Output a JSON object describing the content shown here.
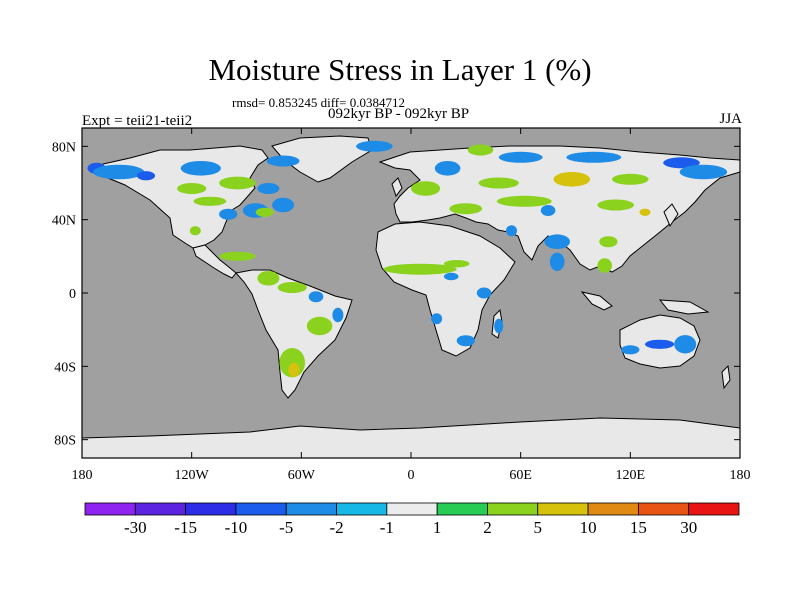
{
  "title": "Moisture Stress in Layer 1 (%)",
  "stats_text": "rmsd= 0.853245 diff= 0.0384712",
  "period_text": "092kyr BP - 092kyr BP",
  "left_label": "Expt = teii21-teii2",
  "right_label": "JJA",
  "chart_data": {
    "type": "heatmap",
    "projection": "cylindrical-equidistant",
    "xlim": [
      -180,
      180
    ],
    "ylim": [
      -90,
      90
    ],
    "x_ticks": [
      {
        "value": -180,
        "label": "180"
      },
      {
        "value": -120,
        "label": "120W"
      },
      {
        "value": -60,
        "label": "60W"
      },
      {
        "value": 0,
        "label": "0"
      },
      {
        "value": 60,
        "label": "60E"
      },
      {
        "value": 120,
        "label": "120E"
      },
      {
        "value": 180,
        "label": "180"
      }
    ],
    "y_ticks": [
      {
        "value": 80,
        "label": "80N"
      },
      {
        "value": 40,
        "label": "40N"
      },
      {
        "value": 0,
        "label": "0"
      },
      {
        "value": -40,
        "label": "40S"
      },
      {
        "value": -80,
        "label": "80S"
      }
    ],
    "ocean_color": "#a0a0a0",
    "land_color": "#e8e8e8",
    "colorbar": {
      "labels": [
        "-30",
        "-15",
        "-10",
        "-5",
        "-2",
        "-1",
        "1",
        "2",
        "5",
        "10",
        "15",
        "30"
      ],
      "colors": [
        "#8f24f0",
        "#5c24e0",
        "#2d2ce6",
        "#1c5cec",
        "#1e8ce6",
        "#18b8e6",
        "#ececec",
        "#26cc54",
        "#8ad21e",
        "#d6c20c",
        "#e08a14",
        "#e85414",
        "#e81414"
      ]
    },
    "anomalies": [
      {
        "label": "-5",
        "lon": -172,
        "lat": 68,
        "w": 10,
        "h": 6
      },
      {
        "label": "-2",
        "lon": -160,
        "lat": 66,
        "w": 28,
        "h": 8
      },
      {
        "label": "-5",
        "lon": -145,
        "lat": 64,
        "w": 10,
        "h": 5
      },
      {
        "label": "-2",
        "lon": -115,
        "lat": 68,
        "w": 22,
        "h": 8
      },
      {
        "label": "-2",
        "lon": -70,
        "lat": 72,
        "w": 18,
        "h": 6
      },
      {
        "label": "2",
        "lon": -120,
        "lat": 57,
        "w": 16,
        "h": 6
      },
      {
        "label": "2",
        "lon": -95,
        "lat": 60,
        "w": 20,
        "h": 7
      },
      {
        "label": "-2",
        "lon": -78,
        "lat": 57,
        "w": 12,
        "h": 6
      },
      {
        "label": "2",
        "lon": -110,
        "lat": 50,
        "w": 18,
        "h": 5
      },
      {
        "label": "-2",
        "lon": -100,
        "lat": 43,
        "w": 10,
        "h": 6
      },
      {
        "label": "-2",
        "lon": -85,
        "lat": 45,
        "w": 14,
        "h": 8
      },
      {
        "label": "-2",
        "lon": -70,
        "lat": 48,
        "w": 12,
        "h": 8
      },
      {
        "label": "2",
        "lon": -80,
        "lat": 44,
        "w": 10,
        "h": 5
      },
      {
        "label": "2",
        "lon": -118,
        "lat": 34,
        "w": 6,
        "h": 5
      },
      {
        "label": "2",
        "lon": -95,
        "lat": 20,
        "w": 20,
        "h": 5
      },
      {
        "label": "2",
        "lon": -78,
        "lat": 8,
        "w": 12,
        "h": 8
      },
      {
        "label": "2",
        "lon": -65,
        "lat": 3,
        "w": 16,
        "h": 6
      },
      {
        "label": "-2",
        "lon": -52,
        "lat": -2,
        "w": 8,
        "h": 6
      },
      {
        "label": "2",
        "lon": -50,
        "lat": -18,
        "w": 14,
        "h": 10
      },
      {
        "label": "-2",
        "lon": -40,
        "lat": -12,
        "w": 6,
        "h": 8
      },
      {
        "label": "2",
        "lon": -65,
        "lat": -38,
        "w": 14,
        "h": 16
      },
      {
        "label": "5",
        "lon": -64,
        "lat": -42,
        "w": 6,
        "h": 8
      },
      {
        "label": "-2",
        "lon": -20,
        "lat": 80,
        "w": 20,
        "h": 6
      },
      {
        "label": "2",
        "lon": 38,
        "lat": 78,
        "w": 14,
        "h": 6
      },
      {
        "label": "-2",
        "lon": 20,
        "lat": 68,
        "w": 14,
        "h": 8
      },
      {
        "label": "-2",
        "lon": 60,
        "lat": 74,
        "w": 24,
        "h": 6
      },
      {
        "label": "-2",
        "lon": 100,
        "lat": 74,
        "w": 30,
        "h": 6
      },
      {
        "label": "-5",
        "lon": 148,
        "lat": 71,
        "w": 20,
        "h": 6
      },
      {
        "label": "-2",
        "lon": 160,
        "lat": 66,
        "w": 26,
        "h": 8
      },
      {
        "label": "2",
        "lon": 8,
        "lat": 57,
        "w": 16,
        "h": 8
      },
      {
        "label": "2",
        "lon": 48,
        "lat": 60,
        "w": 22,
        "h": 6
      },
      {
        "label": "5",
        "lon": 88,
        "lat": 62,
        "w": 20,
        "h": 8
      },
      {
        "label": "2",
        "lon": 120,
        "lat": 62,
        "w": 20,
        "h": 6
      },
      {
        "label": "2",
        "lon": 30,
        "lat": 46,
        "w": 18,
        "h": 6
      },
      {
        "label": "2",
        "lon": 62,
        "lat": 50,
        "w": 30,
        "h": 6
      },
      {
        "label": "-2",
        "lon": 75,
        "lat": 45,
        "w": 8,
        "h": 6
      },
      {
        "label": "-2",
        "lon": 55,
        "lat": 34,
        "w": 6,
        "h": 6
      },
      {
        "label": "2",
        "lon": 112,
        "lat": 48,
        "w": 20,
        "h": 6
      },
      {
        "label": "5",
        "lon": 128,
        "lat": 44,
        "w": 6,
        "h": 4
      },
      {
        "label": "-2",
        "lon": 80,
        "lat": 28,
        "w": 14,
        "h": 8
      },
      {
        "label": "2",
        "lon": 108,
        "lat": 28,
        "w": 10,
        "h": 6
      },
      {
        "label": "-2",
        "lon": 80,
        "lat": 17,
        "w": 8,
        "h": 10
      },
      {
        "label": "2",
        "lon": 106,
        "lat": 15,
        "w": 8,
        "h": 8
      },
      {
        "label": "2",
        "lon": 5,
        "lat": 13,
        "w": 40,
        "h": 6
      },
      {
        "label": "2",
        "lon": 25,
        "lat": 16,
        "w": 14,
        "h": 4
      },
      {
        "label": "-2",
        "lon": 22,
        "lat": 9,
        "w": 8,
        "h": 4
      },
      {
        "label": "-2",
        "lon": 40,
        "lat": 0,
        "w": 8,
        "h": 6
      },
      {
        "label": "-2",
        "lon": 14,
        "lat": -14,
        "w": 6,
        "h": 6
      },
      {
        "label": "-2",
        "lon": 30,
        "lat": -26,
        "w": 10,
        "h": 6
      },
      {
        "label": "-2",
        "lon": 48,
        "lat": -18,
        "w": 5,
        "h": 8
      },
      {
        "label": "-5",
        "lon": 136,
        "lat": -28,
        "w": 16,
        "h": 5
      },
      {
        "label": "-2",
        "lon": 150,
        "lat": -28,
        "w": 12,
        "h": 10
      },
      {
        "label": "-2",
        "lon": 120,
        "lat": -31,
        "w": 10,
        "h": 5
      }
    ]
  }
}
